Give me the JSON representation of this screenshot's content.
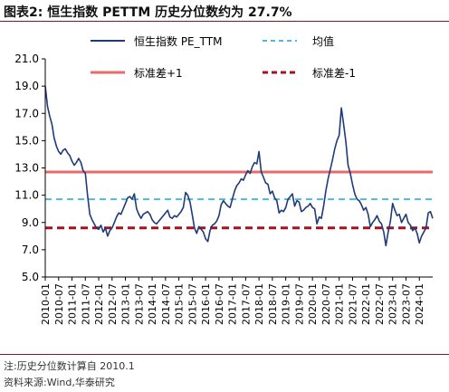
{
  "figure": {
    "title": "图表2:  恒生指数 PETTM 历史分位数约为 27.7%",
    "note": "注:历史分位数计算自 2010.1",
    "source": "资料来源:Wind,华泰研究"
  },
  "colors": {
    "series": "#1f3b7a",
    "mean": "#4fb8e0",
    "plus1": "#e86b6b",
    "minus1": "#a3131f",
    "rule": "#7d1b2e"
  },
  "chart_data": {
    "type": "line",
    "title": "",
    "xlabel": "",
    "ylabel": "",
    "ylim": [
      5.0,
      21.0
    ],
    "yticks": [
      "21.0",
      "19.0",
      "17.0",
      "15.0",
      "13.0",
      "11.0",
      "9.0",
      "7.0",
      "5.0"
    ],
    "xticks": [
      "2010-01",
      "2010-07",
      "2011-01",
      "2011-07",
      "2012-01",
      "2012-07",
      "2013-01",
      "2013-07",
      "2014-01",
      "2014-07",
      "2015-01",
      "2015-07",
      "2016-01",
      "2016-07",
      "2017-01",
      "2017-07",
      "2018-01",
      "2018-07",
      "2019-01",
      "2019-07",
      "2020-01",
      "2020-07",
      "2021-01",
      "2021-07",
      "2022-01",
      "2022-07",
      "2023-01",
      "2023-07",
      "2024-01"
    ],
    "x_range": [
      "2010-01",
      "2024-07"
    ],
    "legend_position": "top",
    "series": [
      {
        "name": "恒生指数 PE_TTM",
        "points": [
          [
            "2010-01",
            19.0
          ],
          [
            "2010-02",
            17.5
          ],
          [
            "2010-03",
            16.8
          ],
          [
            "2010-04",
            16.2
          ],
          [
            "2010-05",
            15.2
          ],
          [
            "2010-06",
            14.6
          ],
          [
            "2010-07",
            14.2
          ],
          [
            "2010-08",
            14.0
          ],
          [
            "2010-09",
            14.3
          ],
          [
            "2010-10",
            14.4
          ],
          [
            "2010-11",
            14.1
          ],
          [
            "2010-12",
            13.9
          ],
          [
            "2011-01",
            13.5
          ],
          [
            "2011-02",
            13.2
          ],
          [
            "2011-03",
            13.4
          ],
          [
            "2011-04",
            13.7
          ],
          [
            "2011-05",
            13.4
          ],
          [
            "2011-06",
            12.8
          ],
          [
            "2011-07",
            12.6
          ],
          [
            "2011-08",
            11.0
          ],
          [
            "2011-09",
            9.6
          ],
          [
            "2011-10",
            9.2
          ],
          [
            "2011-11",
            8.9
          ],
          [
            "2011-12",
            8.6
          ],
          [
            "2012-01",
            8.5
          ],
          [
            "2012-02",
            8.8
          ],
          [
            "2012-03",
            8.3
          ],
          [
            "2012-04",
            8.6
          ],
          [
            "2012-05",
            8.0
          ],
          [
            "2012-06",
            8.4
          ],
          [
            "2012-07",
            8.6
          ],
          [
            "2012-08",
            9.0
          ],
          [
            "2012-09",
            9.4
          ],
          [
            "2012-10",
            9.7
          ],
          [
            "2012-11",
            9.6
          ],
          [
            "2012-12",
            10.0
          ],
          [
            "2013-01",
            10.4
          ],
          [
            "2013-02",
            10.8
          ],
          [
            "2013-03",
            10.9
          ],
          [
            "2013-04",
            10.7
          ],
          [
            "2013-05",
            11.1
          ],
          [
            "2013-06",
            10.0
          ],
          [
            "2013-07",
            9.6
          ],
          [
            "2013-08",
            9.3
          ],
          [
            "2013-09",
            9.6
          ],
          [
            "2013-10",
            9.7
          ],
          [
            "2013-11",
            9.8
          ],
          [
            "2013-12",
            9.6
          ],
          [
            "2014-01",
            9.2
          ],
          [
            "2014-02",
            9.0
          ],
          [
            "2014-03",
            8.9
          ],
          [
            "2014-04",
            9.1
          ],
          [
            "2014-05",
            9.3
          ],
          [
            "2014-06",
            9.5
          ],
          [
            "2014-07",
            9.7
          ],
          [
            "2014-08",
            9.9
          ],
          [
            "2014-09",
            9.4
          ],
          [
            "2014-10",
            9.3
          ],
          [
            "2014-11",
            9.5
          ],
          [
            "2014-12",
            9.4
          ],
          [
            "2015-01",
            9.6
          ],
          [
            "2015-02",
            9.8
          ],
          [
            "2015-03",
            10.1
          ],
          [
            "2015-04",
            11.2
          ],
          [
            "2015-05",
            11.0
          ],
          [
            "2015-06",
            10.5
          ],
          [
            "2015-07",
            9.6
          ],
          [
            "2015-08",
            8.6
          ],
          [
            "2015-09",
            8.2
          ],
          [
            "2015-10",
            8.7
          ],
          [
            "2015-11",
            8.5
          ],
          [
            "2015-12",
            8.3
          ],
          [
            "2016-01",
            7.8
          ],
          [
            "2016-02",
            7.6
          ],
          [
            "2016-03",
            8.4
          ],
          [
            "2016-04",
            8.8
          ],
          [
            "2016-05",
            8.9
          ],
          [
            "2016-06",
            9.1
          ],
          [
            "2016-07",
            9.5
          ],
          [
            "2016-08",
            10.3
          ],
          [
            "2016-09",
            10.6
          ],
          [
            "2016-10",
            10.4
          ],
          [
            "2016-11",
            10.2
          ],
          [
            "2016-12",
            10.1
          ],
          [
            "2017-01",
            10.7
          ],
          [
            "2017-02",
            11.3
          ],
          [
            "2017-03",
            11.7
          ],
          [
            "2017-04",
            11.9
          ],
          [
            "2017-05",
            12.2
          ],
          [
            "2017-06",
            12.1
          ],
          [
            "2017-07",
            12.5
          ],
          [
            "2017-08",
            12.8
          ],
          [
            "2017-09",
            12.6
          ],
          [
            "2017-10",
            13.1
          ],
          [
            "2017-11",
            13.4
          ],
          [
            "2017-12",
            13.3
          ],
          [
            "2018-01",
            14.2
          ],
          [
            "2018-02",
            12.7
          ],
          [
            "2018-03",
            12.3
          ],
          [
            "2018-04",
            11.9
          ],
          [
            "2018-05",
            11.8
          ],
          [
            "2018-06",
            11.1
          ],
          [
            "2018-07",
            11.3
          ],
          [
            "2018-08",
            10.8
          ],
          [
            "2018-09",
            10.6
          ],
          [
            "2018-10",
            9.7
          ],
          [
            "2018-11",
            9.9
          ],
          [
            "2018-12",
            9.8
          ],
          [
            "2019-01",
            10.1
          ],
          [
            "2019-02",
            10.7
          ],
          [
            "2019-03",
            10.9
          ],
          [
            "2019-04",
            11.1
          ],
          [
            "2019-05",
            10.2
          ],
          [
            "2019-06",
            10.6
          ],
          [
            "2019-07",
            10.5
          ],
          [
            "2019-08",
            9.8
          ],
          [
            "2019-09",
            9.9
          ],
          [
            "2019-10",
            10.1
          ],
          [
            "2019-11",
            10.2
          ],
          [
            "2019-12",
            10.4
          ],
          [
            "2020-01",
            10.1
          ],
          [
            "2020-02",
            10.0
          ],
          [
            "2020-03",
            8.9
          ],
          [
            "2020-04",
            9.4
          ],
          [
            "2020-05",
            9.3
          ],
          [
            "2020-06",
            10.2
          ],
          [
            "2020-07",
            11.3
          ],
          [
            "2020-08",
            12.2
          ],
          [
            "2020-09",
            12.9
          ],
          [
            "2020-10",
            13.6
          ],
          [
            "2020-11",
            14.4
          ],
          [
            "2020-12",
            15.0
          ],
          [
            "2021-01",
            15.4
          ],
          [
            "2021-02",
            17.4
          ],
          [
            "2021-03",
            16.2
          ],
          [
            "2021-04",
            14.9
          ],
          [
            "2021-05",
            13.2
          ],
          [
            "2021-06",
            12.6
          ],
          [
            "2021-07",
            11.8
          ],
          [
            "2021-08",
            11.1
          ],
          [
            "2021-09",
            10.7
          ],
          [
            "2021-10",
            10.6
          ],
          [
            "2021-11",
            10.3
          ],
          [
            "2021-12",
            9.9
          ],
          [
            "2022-01",
            10.1
          ],
          [
            "2022-02",
            9.6
          ],
          [
            "2022-03",
            8.7
          ],
          [
            "2022-04",
            9.0
          ],
          [
            "2022-05",
            9.2
          ],
          [
            "2022-06",
            9.5
          ],
          [
            "2022-07",
            9.1
          ],
          [
            "2022-08",
            8.9
          ],
          [
            "2022-09",
            8.3
          ],
          [
            "2022-10",
            7.3
          ],
          [
            "2022-11",
            8.3
          ],
          [
            "2022-12",
            9.1
          ],
          [
            "2023-01",
            10.4
          ],
          [
            "2023-02",
            9.9
          ],
          [
            "2023-03",
            9.5
          ],
          [
            "2023-04",
            9.6
          ],
          [
            "2023-05",
            9.0
          ],
          [
            "2023-06",
            9.3
          ],
          [
            "2023-07",
            9.6
          ],
          [
            "2023-08",
            9.0
          ],
          [
            "2023-09",
            8.8
          ],
          [
            "2023-10",
            8.4
          ],
          [
            "2023-11",
            8.6
          ],
          [
            "2023-12",
            8.2
          ],
          [
            "2024-01",
            7.5
          ],
          [
            "2024-02",
            8.0
          ],
          [
            "2024-03",
            8.3
          ],
          [
            "2024-04",
            8.6
          ],
          [
            "2024-05",
            9.7
          ],
          [
            "2024-06",
            9.8
          ],
          [
            "2024-07",
            9.3
          ]
        ]
      },
      {
        "name": "均值",
        "value": 10.7
      },
      {
        "name": "标准差+1",
        "value": 12.7
      },
      {
        "name": "标准差-1",
        "value": 8.6
      }
    ]
  }
}
